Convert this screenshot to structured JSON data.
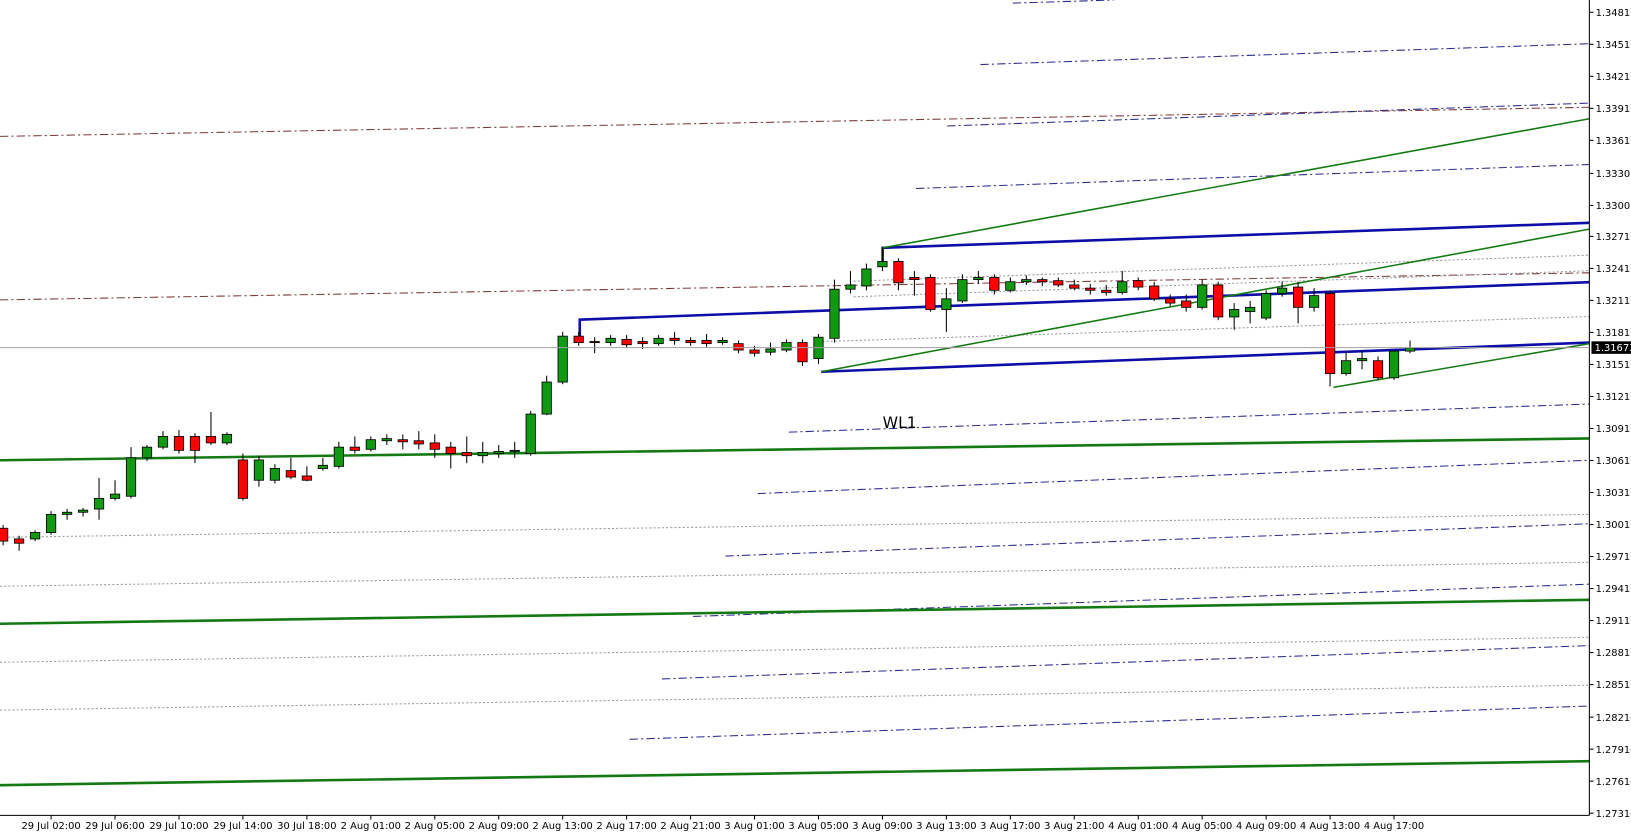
{
  "chart_data": {
    "type": "candlestick",
    "categories": [
      null,
      null,
      null,
      "29 Jul 02:00",
      null,
      null,
      null,
      "29 Jul 06:00",
      null,
      null,
      null,
      "29 Jul 10:00",
      null,
      null,
      null,
      "29 Jul 14:00",
      null,
      null,
      null,
      "30 Jul 18:00",
      null,
      null,
      null,
      "2 Aug 01:00",
      null,
      null,
      null,
      "2 Aug 05:00",
      null,
      null,
      null,
      "2 Aug 09:00",
      null,
      null,
      null,
      "2 Aug 13:00",
      null,
      null,
      null,
      "2 Aug 17:00",
      null,
      null,
      null,
      "2 Aug 21:00",
      null,
      null,
      null,
      "3 Aug 01:00",
      null,
      null,
      null,
      "3 Aug 05:00",
      null,
      null,
      null,
      "3 Aug 09:00",
      null,
      null,
      null,
      "3 Aug 13:00",
      null,
      null,
      null,
      "3 Aug 17:00",
      null,
      null,
      null,
      "3 Aug 21:00",
      null,
      null,
      null,
      "4 Aug 01:00",
      null,
      null,
      null,
      "4 Aug 05:00",
      null,
      null,
      null,
      "4 Aug 09:00",
      null,
      null,
      null,
      "4 Aug 13:00",
      null,
      null,
      null,
      "4 Aug 17:00",
      null
    ],
    "open": [
      1.2998,
      1.2988,
      1.2988,
      1.2994,
      1.3011,
      1.3013,
      1.3016,
      1.3026,
      1.3028,
      1.3064,
      1.3074,
      1.3084,
      1.3084,
      1.3084,
      1.3078,
      1.3062,
      1.3043,
      1.3043,
      1.3052,
      1.3047,
      1.3054,
      1.3056,
      1.3074,
      1.3072,
      1.308,
      1.3081,
      1.308,
      1.3078,
      1.3074,
      1.3069,
      1.3066,
      1.3068,
      1.307,
      1.3068,
      1.3105,
      1.3135,
      1.3178,
      1.3173,
      1.3172,
      1.3175,
      1.3173,
      1.3171,
      1.3176,
      1.3174,
      1.3174,
      1.3172,
      1.3171,
      1.3165,
      1.3163,
      1.3165,
      1.3172,
      1.3157,
      1.3176,
      1.3222,
      1.3225,
      1.3243,
      1.3248,
      1.3233,
      1.3233,
      1.3203,
      1.3211,
      1.3231,
      1.3233,
      1.3221,
      1.3229,
      1.3231,
      1.323,
      1.3226,
      1.3223,
      1.3221,
      1.3219,
      1.323,
      1.3225,
      1.3213,
      1.3211,
      1.3205,
      1.3226,
      1.3196,
      1.3201,
      1.3195,
      1.3218,
      1.3224,
      1.3205,
      1.3218,
      1.3143,
      1.3155,
      1.3155,
      1.3139,
      1.3164
    ],
    "high": [
      1.3001,
      1.2991,
      1.2996,
      1.3014,
      1.3016,
      1.3017,
      1.3045,
      1.3043,
      1.3074,
      1.3076,
      1.3089,
      1.309,
      1.3087,
      1.3107,
      1.3088,
      1.3068,
      1.3066,
      1.3058,
      1.3064,
      1.3056,
      1.3064,
      1.3079,
      1.3084,
      1.3084,
      1.3086,
      1.3086,
      1.3089,
      1.3086,
      1.3079,
      1.3084,
      1.3079,
      1.3076,
      1.3079,
      1.3108,
      1.3141,
      1.3182,
      1.3182,
      1.3177,
      1.3179,
      1.3179,
      1.3177,
      1.3179,
      1.3182,
      1.3177,
      1.318,
      1.3177,
      1.3174,
      1.3169,
      1.3172,
      1.3175,
      1.3175,
      1.318,
      1.3231,
      1.3239,
      1.3246,
      1.3261,
      1.3251,
      1.3239,
      1.3236,
      1.3223,
      1.3236,
      1.3239,
      1.3236,
      1.3233,
      1.3235,
      1.3233,
      1.3233,
      1.3231,
      1.3227,
      1.3226,
      1.3239,
      1.3233,
      1.3229,
      1.3217,
      1.3217,
      1.3231,
      1.3229,
      1.3209,
      1.3211,
      1.3221,
      1.3229,
      1.3229,
      1.3223,
      1.3221,
      1.3163,
      1.3164,
      1.3159,
      1.3164,
      1.3174
    ],
    "low": [
      1.2982,
      1.2977,
      1.2986,
      1.2992,
      1.3006,
      1.3009,
      1.3006,
      1.3024,
      1.3026,
      1.3061,
      1.3072,
      1.3068,
      1.3059,
      1.3076,
      1.3076,
      1.3024,
      1.3037,
      1.304,
      1.3044,
      1.3042,
      1.3052,
      1.3054,
      1.3068,
      1.307,
      1.3076,
      1.3072,
      1.3072,
      1.3064,
      1.3054,
      1.3059,
      1.3059,
      1.3064,
      1.3064,
      1.3066,
      1.3104,
      1.3133,
      1.3169,
      1.3162,
      1.3169,
      1.3167,
      1.3166,
      1.3169,
      1.317,
      1.3169,
      1.3168,
      1.317,
      1.3162,
      1.3159,
      1.316,
      1.3163,
      1.315,
      1.3152,
      1.3172,
      1.3218,
      1.3221,
      1.3239,
      1.3221,
      1.3216,
      1.3201,
      1.3182,
      1.3209,
      1.3227,
      1.3217,
      1.3219,
      1.3226,
      1.3225,
      1.3224,
      1.3221,
      1.3217,
      1.3216,
      1.3217,
      1.3221,
      1.3211,
      1.3206,
      1.3201,
      1.3203,
      1.3193,
      1.3184,
      1.319,
      1.3193,
      1.3215,
      1.319,
      1.3201,
      1.3131,
      1.3141,
      1.3147,
      1.3137,
      1.3137,
      1.3162
    ],
    "close": [
      1.2986,
      1.2984,
      1.2994,
      1.3011,
      1.3013,
      1.3015,
      1.3026,
      1.303,
      1.3064,
      1.3074,
      1.3084,
      1.3071,
      1.3071,
      1.3078,
      1.3086,
      1.3026,
      1.3062,
      1.3054,
      1.3046,
      1.3043,
      1.3057,
      1.3074,
      1.3071,
      1.3081,
      1.3082,
      1.3079,
      1.3077,
      1.3072,
      1.3068,
      1.3066,
      1.3069,
      1.307,
      1.3071,
      1.3105,
      1.3135,
      1.3178,
      1.3172,
      1.3172,
      1.3176,
      1.317,
      1.3171,
      1.3176,
      1.3174,
      1.3172,
      1.3171,
      1.3174,
      1.3165,
      1.3162,
      1.3166,
      1.3172,
      1.3154,
      1.3177,
      1.3222,
      1.3226,
      1.3241,
      1.3248,
      1.3228,
      1.3231,
      1.3203,
      1.3213,
      1.3231,
      1.3233,
      1.3221,
      1.3229,
      1.3231,
      1.3229,
      1.3226,
      1.3223,
      1.3221,
      1.3219,
      1.3229,
      1.3224,
      1.3213,
      1.3209,
      1.3205,
      1.3226,
      1.3196,
      1.3203,
      1.3205,
      1.3218,
      1.3223,
      1.3205,
      1.3216,
      1.3143,
      1.3155,
      1.3157,
      1.3139,
      1.3164,
      1.3167
    ],
    "up_color": "#119911",
    "down_color": "#ff0000",
    "wick_color": "#000000",
    "ylim": [
      1.2729,
      1.3493
    ],
    "yticks": [
      {
        "value": 1.2731,
        "label": "1.27310"
      },
      {
        "value": 1.2761,
        "label": "1.27610"
      },
      {
        "value": 1.2791,
        "label": "1.27910"
      },
      {
        "value": 1.2821,
        "label": "1.28210"
      },
      1.28515,
      1.28815,
      1.29115,
      1.29415,
      1.29715,
      1.30015,
      1.30315,
      1.30615,
      1.30915,
      1.31215,
      1.31515,
      1.31815,
      1.32115,
      1.32415,
      1.32715,
      1.33005,
      1.33305,
      1.33615,
      1.33915,
      1.34215,
      1.34515,
      1.34815
    ],
    "current_price": 1.31673,
    "annotations": [
      "WL1"
    ]
  }
}
